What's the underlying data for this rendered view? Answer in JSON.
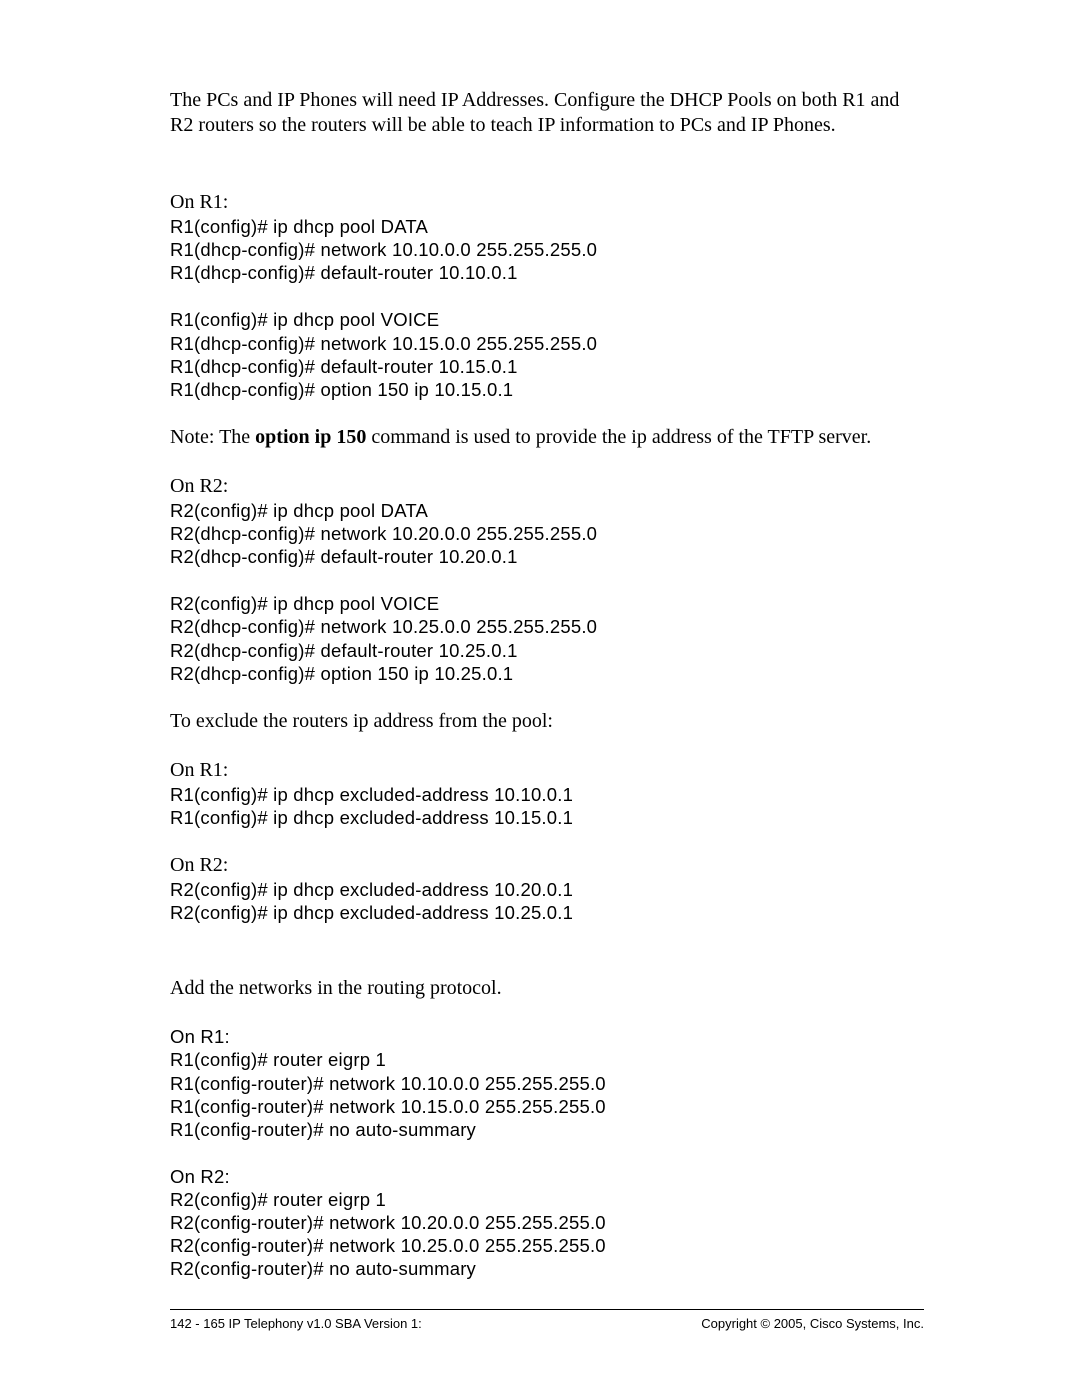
{
  "intro": "The PCs and IP Phones will need IP Addresses. Configure the DHCP Pools on both R1 and R2 routers so the routers will be able to teach IP information to PCs and IP Phones.",
  "dhcp_r1_header": "On R1:",
  "dhcp_r1_block1": {
    "l1": "R1(config)# ",
    "c1": "ip dhcp pool DATA",
    "l2": "R1(dhcp-config)# ",
    "c2": "network 10.10.0.0 255.255.255.0",
    "l3": "R1(dhcp-config)# ",
    "c3": "default-router 10.10.0.1"
  },
  "dhcp_r1_block2": {
    "l1": "R1(config)# ",
    "c1": "ip dhcp pool VOICE",
    "l2": "R1(dhcp-config)# ",
    "c2": "network 10.15.0.0 255.255.255.0",
    "l3": "R1(dhcp-config)# ",
    "c3": "default-router 10.15.0.1",
    "l4": "R1(dhcp-config)# ",
    "c4": "option 150 ip 10.15.0.1"
  },
  "note_prefix": "Note: The ",
  "note_bold": "option ip 150",
  "note_suffix": " command is used to provide the ip address of the TFTP server.",
  "dhcp_r2_header": "On R2:",
  "dhcp_r2_block1": {
    "l1": "R2(config)# ",
    "c1": "ip dhcp pool DATA",
    "l2": "R2(dhcp-config)# ",
    "c2": "network 10.20.0.0 255.255.255.0",
    "l3": "R2(dhcp-config)# ",
    "c3": "default-router 10.20.0.1"
  },
  "dhcp_r2_block2": {
    "l1": "R2(config)# ",
    "c1": "ip dhcp pool VOICE",
    "l2": "R2(dhcp-config)# ",
    "c2": "network 10.25.0.0 255.255.255.0",
    "l3": "R2(dhcp-config)# ",
    "c3": "default-router 10.25.0.1",
    "l4": "R2(dhcp-config)# ",
    "c4": "option 150 ip 10.25.0.1"
  },
  "exclude_intro": "To exclude the routers ip address from the pool:",
  "excl_r1_header": "On R1:",
  "excl_r1": {
    "l1": "R1(config)# ",
    "c1": "ip dhcp excluded-address 10.10.0.1",
    "l2": "R1(config)# ",
    "c2": "ip dhcp excluded-address 10.15.0.1"
  },
  "excl_r2_header": "On R2:",
  "excl_r2": {
    "l1": "R2(config)# ",
    "c1": "ip dhcp excluded-address 10.20.0.1",
    "l2": "R2(config)# ",
    "c2": "ip dhcp excluded-address 10.25.0.1"
  },
  "routing_intro": "Add the networks in the routing protocol.",
  "rt_r1_header": "On R1:",
  "rt_r1": {
    "l1": "R1(config)# ",
    "c1": "router eigrp 1",
    "l2": "R1(config-router)# ",
    "c2": "network 10.10.0.0 255.255.255.0",
    "l3": "R1(config-router)# ",
    "c3": "network 10.15.0.0 255.255.255.0",
    "l4": "R1(config-router)# ",
    "c4": "no auto-summary"
  },
  "rt_r2_header": "On R2:",
  "rt_r2": {
    "l1": "R2(config)# ",
    "c1": "router eigrp 1",
    "l2": "R2(config-router)# ",
    "c2": "network 10.20.0.0 255.255.255.0",
    "l3": "R2(config-router)# ",
    "c3": "network 10.25.0.0 255.255.255.0",
    "l4": "R2(config-router)# ",
    "c4": "no auto-summary"
  },
  "footer_left": "142 - 165 IP Telephony v1.0 SBA Version 1:",
  "footer_right": "Copyright © 2005, Cisco Systems, Inc."
}
